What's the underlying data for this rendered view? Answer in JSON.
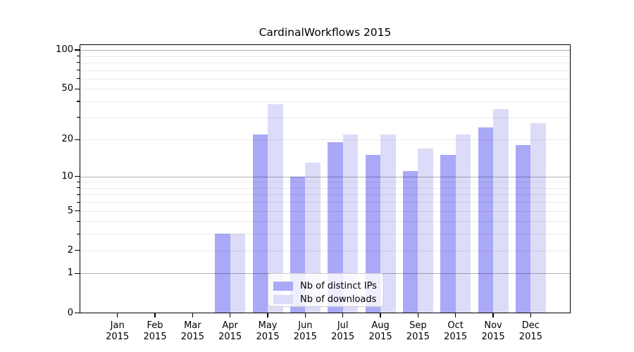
{
  "chart_data": {
    "type": "bar",
    "title": "CardinalWorkflows 2015",
    "categories": [
      "Jan 2015",
      "Feb 2015",
      "Mar 2015",
      "Apr 2015",
      "May 2015",
      "Jun 2015",
      "Jul 2015",
      "Aug 2015",
      "Sep 2015",
      "Oct 2015",
      "Nov 2015",
      "Dec 2015"
    ],
    "series": [
      {
        "name": "Nb of distinct IPs",
        "color": "#a9a9f8",
        "values": [
          0,
          0,
          0,
          3,
          22,
          10,
          19,
          15,
          11,
          15,
          25,
          18
        ]
      },
      {
        "name": "Nb of downloads",
        "color": "#dcdcf9",
        "values": [
          0,
          0,
          0,
          3,
          38,
          13,
          22,
          22,
          17,
          22,
          35,
          27
        ]
      }
    ],
    "yscale": "log1p",
    "ylim": [
      0,
      111
    ],
    "ytick_values": [
      0,
      1,
      2,
      5,
      10,
      20,
      50,
      100
    ],
    "ytick_labels": [
      "0",
      "1",
      "2",
      "5",
      "10",
      "20",
      "50",
      "100"
    ],
    "major_gridlines": [
      1,
      10,
      100
    ],
    "minor_gridlines": [
      2,
      3,
      4,
      5,
      6,
      7,
      8,
      9,
      20,
      30,
      40,
      50,
      60,
      70,
      80,
      90
    ],
    "grid": "on",
    "legend_position": "lower center",
    "xlabel": "",
    "ylabel": ""
  },
  "colors": {
    "bar_dark": "#a9a9f8",
    "bar_light": "#dcdcf9",
    "axis": "#000000",
    "grid_minor": "#e9e9e9",
    "grid_major": "#b3b3b3",
    "legend_border": "#cccccc",
    "background": "#ffffff"
  }
}
